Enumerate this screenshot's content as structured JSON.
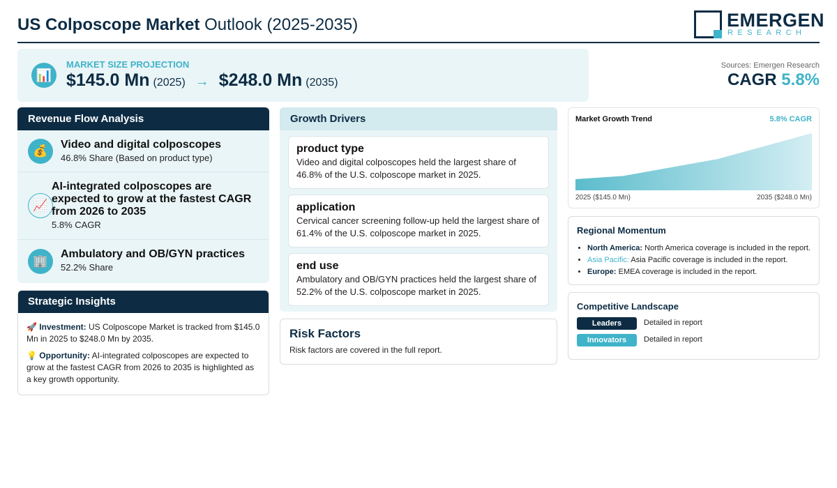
{
  "header": {
    "title_bold": "US Colposcope Market",
    "title_rest": "Outlook (2025-2035)",
    "logo_word": "EMERGEN",
    "logo_sub": "RESEARCH"
  },
  "projection": {
    "label": "MARKET SIZE PROJECTION",
    "icon": "bar-chart-icon",
    "start_value": "$145.0 Mn",
    "start_year": "(2025)",
    "arrow": "→",
    "end_value": "$248.0 Mn",
    "end_year": "(2035)"
  },
  "summary": {
    "sources": "Sources: Emergen Research",
    "cagr_label": "CAGR",
    "cagr_value": "5.8%"
  },
  "revenue_flow": {
    "heading": "Revenue Flow Analysis",
    "items": [
      {
        "icon": "money-bag-icon",
        "glyph": "💰",
        "title": "Video and digital colposcopes",
        "subtitle": "46.8% Share (Based on product type)"
      },
      {
        "icon": "chart-increasing-icon",
        "glyph": "📈",
        "title": "AI-integrated colposcopes are expected to grow at the fastest CAGR from 2026 to 2035",
        "subtitle": "5.8% CAGR"
      },
      {
        "icon": "office-building-icon",
        "glyph": "🏢",
        "title": "Ambulatory and OB/GYN practices",
        "subtitle": "52.2% Share"
      }
    ]
  },
  "strategic": {
    "heading": "Strategic Insights",
    "investment_icon": "🚀",
    "investment_label": "Investment:",
    "investment_text": "US Colposcope Market is tracked from $145.0 Mn in 2025 to $248.0 Mn by 2035.",
    "opportunity_icon": "💡",
    "opportunity_label": "Opportunity:",
    "opportunity_text": "AI-integrated colposcopes are expected to grow at the fastest CAGR from 2026 to 2035 is highlighted as a key growth opportunity."
  },
  "drivers": {
    "heading": "Growth Drivers",
    "items": [
      {
        "title": "product type",
        "text": "Video and digital colposcopes held the largest share of 46.8% of the U.S. colposcope market in 2025."
      },
      {
        "title": "application",
        "text": "Cervical cancer screening follow-up held the largest share of 61.4% of the U.S. colposcope market in 2025."
      },
      {
        "title": "end use",
        "text": "Ambulatory and OB/GYN practices held the largest share of 52.2% of the U.S. colposcope market in 2025."
      }
    ]
  },
  "risk": {
    "title": "Risk Factors",
    "text": "Risk factors are covered in the full report."
  },
  "trend": {
    "title": "Market Growth Trend",
    "cagr": "5.8% CAGR",
    "left_label": "2025 ($145.0 Mn)",
    "right_label": "2035 ($248.0 Mn)"
  },
  "chart_data": {
    "type": "area",
    "x": [
      2025,
      2027,
      2031,
      2035
    ],
    "values": [
      145.0,
      152.0,
      190.0,
      248.0
    ],
    "ylim": [
      120,
      248.0
    ]
  },
  "regional": {
    "heading": "Regional Momentum",
    "items": [
      {
        "label": "North America:",
        "text": "North America coverage is included in the report."
      },
      {
        "label": "Asia Pacific:",
        "text": "Asia Pacific coverage is included in the report."
      },
      {
        "label": "Europe:",
        "text": "EMEA coverage is included in the report."
      }
    ]
  },
  "competitive": {
    "heading": "Competitive Landscape",
    "rows": [
      {
        "badge": "Leaders",
        "text": "Detailed in report",
        "color": "#0d2c44"
      },
      {
        "badge": "Innovators",
        "text": "Detailed in report",
        "color": "#3fb3c9"
      }
    ]
  }
}
